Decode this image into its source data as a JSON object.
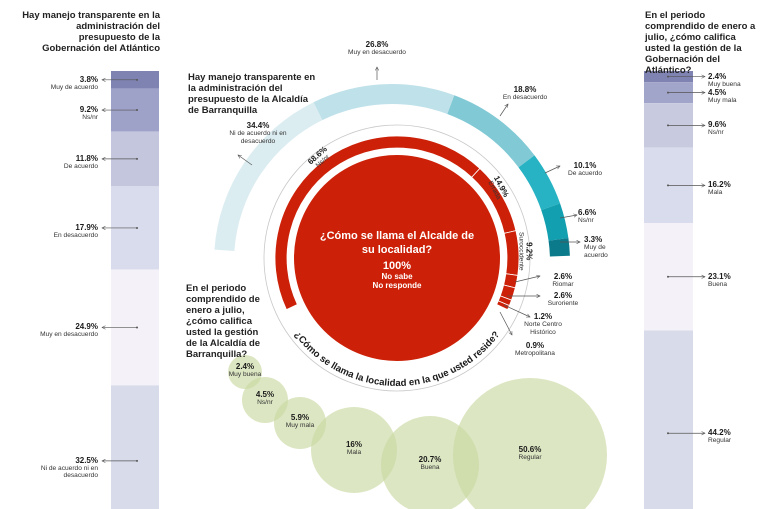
{
  "colors": {
    "red": "#cc2108",
    "bubble": "#c9d9a2",
    "ring_line": "#c8c8c8"
  },
  "chart_data": [
    {
      "type": "bar",
      "orientation": "stacked-vertical",
      "title": "Hay manejo transparente en la administración del presupuesto de la Gobernación del Atlántico",
      "categories": [
        "Muy de acuerdo",
        "Ns/nr",
        "De acuerdo",
        "En desacuerdo",
        "Muy en desacuerdo",
        "Ni de acuerdo ni en desacuerdo"
      ],
      "values": [
        3.8,
        9.2,
        11.8,
        17.9,
        24.9,
        32.5
      ],
      "labels": [
        "3.8%",
        "9.2%",
        "11.8%",
        "17.9%",
        "24.9%",
        "32.5%"
      ],
      "colors": [
        "#7f83b2",
        "#9ea1c8",
        "#c4c6de",
        "#d9dcec",
        "#f4f2f8",
        "#d8dcea"
      ]
    },
    {
      "type": "bar",
      "orientation": "stacked-vertical",
      "title": "En el periodo comprendido de enero a julio, ¿cómo califica usted la gestión de la Gobernación del Atlántico?",
      "categories": [
        "Muy buena",
        "Muy mala",
        "Ns/nr",
        "Mala",
        "Buena",
        "Regular"
      ],
      "values": [
        2.4,
        4.5,
        9.6,
        16.2,
        23.1,
        44.2
      ],
      "labels": [
        "2.4%",
        "4.5%",
        "9.6%",
        "16.2%",
        "23.1%",
        "44.2%"
      ],
      "colors": [
        "#7f83b2",
        "#a2a5ca",
        "#c8cadf",
        "#d9dcec",
        "#f4f2f8",
        "#d8dcea"
      ]
    },
    {
      "type": "pie",
      "style": "arc",
      "title": "Hay manejo transparente en la administración del presupuesto de la Alcaldía de Barranquilla",
      "categories": [
        "Ni de acuerdo ni en desacuerdo",
        "Muy en desacuerdo",
        "En desacuerdo",
        "De acuerdo",
        "Ns/nr",
        "Muy de acuerdo"
      ],
      "values": [
        34.4,
        26.8,
        18.8,
        10.1,
        6.6,
        3.3
      ],
      "labels": [
        "34.4%",
        "26.8%",
        "18.8%",
        "10.1%",
        "6.6%",
        "3.3%"
      ],
      "colors": [
        "#dcedf2",
        "#bfe1ea",
        "#80c9d5",
        "#27b3c3",
        "#12a0b1",
        "#0b7b8c"
      ]
    },
    {
      "type": "pie",
      "style": "ring",
      "title": "¿Cómo se llama la localidad en la que usted reside?",
      "categories": [
        "Ns/nr",
        "Errada",
        "Suroccidente",
        "Riomar",
        "Suroriente",
        "Norte Centro Histórico",
        "Metropolitana"
      ],
      "values": [
        68.6,
        14.9,
        9.2,
        2.6,
        2.6,
        1.2,
        0.9
      ],
      "labels": [
        "68.6%",
        "14.9%",
        "9.2%",
        "2.6%",
        "2.6%",
        "1.2%",
        "0.9%"
      ]
    },
    {
      "type": "pie",
      "style": "disk",
      "title": "¿Cómo se llama el Alcalde de su localidad?",
      "categories": [
        "No sabe No responde"
      ],
      "values": [
        100
      ],
      "labels": [
        "100%"
      ],
      "sub": [
        "No sabe",
        "No responde"
      ]
    },
    {
      "type": "scatter",
      "style": "bubble",
      "title": "En el periodo comprendido de enero a julio, ¿cómo califica usted la gestión de la Alcaldía de Barranquilla?",
      "categories": [
        "Muy buena",
        "Ns/nr",
        "Muy mala",
        "Mala",
        "Buena",
        "Regular"
      ],
      "values": [
        2.4,
        4.5,
        5.9,
        16,
        20.7,
        50.6
      ],
      "labels": [
        "2.4%",
        "4.5%",
        "5.9%",
        "16%",
        "20.7%",
        "50.6%"
      ]
    }
  ]
}
